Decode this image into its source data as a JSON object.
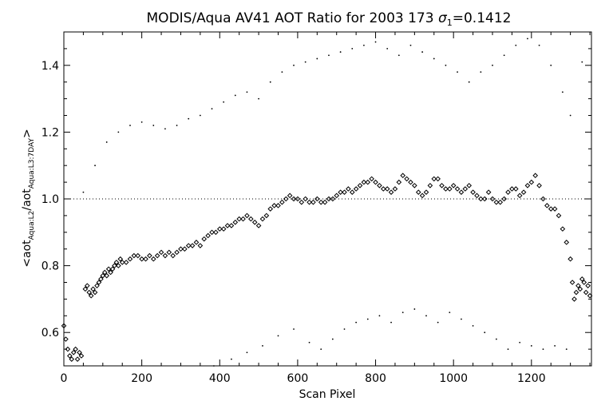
{
  "chart_data": {
    "type": "scatter",
    "title": {
      "main": "MODIS/Aqua AV41 AOT Ratio for 2003 173 ",
      "sigma": "σ",
      "sub": "1",
      "value": "=0.1412"
    },
    "xlabel": "Scan Pixel",
    "ylabel": {
      "prefix": "<aot",
      "sub1": "Aqua:L2",
      "mid": "/aot",
      "sub2": "Aqua:L3:7DAY",
      "suffix": ">"
    },
    "xlim": [
      0,
      1354
    ],
    "ylim": [
      0.5,
      1.5
    ],
    "xticks": [
      0,
      200,
      400,
      600,
      800,
      1000,
      1200
    ],
    "xtick_labels": [
      "0",
      "200",
      "400",
      "600",
      "800",
      "1000",
      "1200"
    ],
    "yticks": [
      0.6,
      0.8,
      1.0,
      1.2,
      1.4
    ],
    "ytick_labels": [
      "0.6",
      "0.8",
      "1.0",
      "1.2",
      "1.4"
    ],
    "reference_line": {
      "y": 1.0,
      "style": "dotted"
    },
    "series": [
      {
        "role": "mean",
        "marker": "diamond",
        "points": [
          [
            0,
            0.62
          ],
          [
            5,
            0.58
          ],
          [
            10,
            0.55
          ],
          [
            15,
            0.53
          ],
          [
            20,
            0.52
          ],
          [
            25,
            0.54
          ],
          [
            30,
            0.55
          ],
          [
            35,
            0.52
          ],
          [
            40,
            0.54
          ],
          [
            45,
            0.53
          ],
          [
            55,
            0.73
          ],
          [
            60,
            0.74
          ],
          [
            65,
            0.72
          ],
          [
            70,
            0.71
          ],
          [
            75,
            0.73
          ],
          [
            80,
            0.72
          ],
          [
            85,
            0.74
          ],
          [
            90,
            0.75
          ],
          [
            95,
            0.76
          ],
          [
            100,
            0.77
          ],
          [
            105,
            0.78
          ],
          [
            110,
            0.77
          ],
          [
            115,
            0.79
          ],
          [
            120,
            0.78
          ],
          [
            125,
            0.79
          ],
          [
            130,
            0.8
          ],
          [
            135,
            0.81
          ],
          [
            140,
            0.8
          ],
          [
            145,
            0.82
          ],
          [
            150,
            0.81
          ],
          [
            160,
            0.81
          ],
          [
            170,
            0.82
          ],
          [
            180,
            0.83
          ],
          [
            190,
            0.83
          ],
          [
            200,
            0.82
          ],
          [
            210,
            0.82
          ],
          [
            220,
            0.83
          ],
          [
            230,
            0.82
          ],
          [
            240,
            0.83
          ],
          [
            250,
            0.84
          ],
          [
            260,
            0.83
          ],
          [
            270,
            0.84
          ],
          [
            280,
            0.83
          ],
          [
            290,
            0.84
          ],
          [
            300,
            0.85
          ],
          [
            310,
            0.85
          ],
          [
            320,
            0.86
          ],
          [
            330,
            0.86
          ],
          [
            340,
            0.87
          ],
          [
            350,
            0.86
          ],
          [
            360,
            0.88
          ],
          [
            370,
            0.89
          ],
          [
            380,
            0.9
          ],
          [
            390,
            0.9
          ],
          [
            400,
            0.91
          ],
          [
            410,
            0.91
          ],
          [
            420,
            0.92
          ],
          [
            430,
            0.92
          ],
          [
            440,
            0.93
          ],
          [
            450,
            0.94
          ],
          [
            460,
            0.94
          ],
          [
            470,
            0.95
          ],
          [
            480,
            0.94
          ],
          [
            490,
            0.93
          ],
          [
            500,
            0.92
          ],
          [
            510,
            0.94
          ],
          [
            520,
            0.95
          ],
          [
            530,
            0.97
          ],
          [
            540,
            0.98
          ],
          [
            550,
            0.98
          ],
          [
            560,
            0.99
          ],
          [
            570,
            1.0
          ],
          [
            580,
            1.01
          ],
          [
            590,
            1.0
          ],
          [
            600,
            1.0
          ],
          [
            610,
            0.99
          ],
          [
            620,
            1.0
          ],
          [
            630,
            0.99
          ],
          [
            640,
            0.99
          ],
          [
            650,
            1.0
          ],
          [
            660,
            0.99
          ],
          [
            670,
            0.99
          ],
          [
            680,
            1.0
          ],
          [
            690,
            1.0
          ],
          [
            700,
            1.01
          ],
          [
            710,
            1.02
          ],
          [
            720,
            1.02
          ],
          [
            730,
            1.03
          ],
          [
            740,
            1.02
          ],
          [
            750,
            1.03
          ],
          [
            760,
            1.04
          ],
          [
            770,
            1.05
          ],
          [
            780,
            1.05
          ],
          [
            790,
            1.06
          ],
          [
            800,
            1.05
          ],
          [
            810,
            1.04
          ],
          [
            820,
            1.03
          ],
          [
            830,
            1.03
          ],
          [
            840,
            1.02
          ],
          [
            850,
            1.03
          ],
          [
            860,
            1.05
          ],
          [
            870,
            1.07
          ],
          [
            880,
            1.06
          ],
          [
            890,
            1.05
          ],
          [
            900,
            1.04
          ],
          [
            910,
            1.02
          ],
          [
            920,
            1.01
          ],
          [
            930,
            1.02
          ],
          [
            940,
            1.04
          ],
          [
            950,
            1.06
          ],
          [
            960,
            1.06
          ],
          [
            970,
            1.04
          ],
          [
            980,
            1.03
          ],
          [
            990,
            1.03
          ],
          [
            1000,
            1.04
          ],
          [
            1010,
            1.03
          ],
          [
            1020,
            1.02
          ],
          [
            1030,
            1.03
          ],
          [
            1040,
            1.04
          ],
          [
            1050,
            1.02
          ],
          [
            1060,
            1.01
          ],
          [
            1070,
            1.0
          ],
          [
            1080,
            1.0
          ],
          [
            1090,
            1.02
          ],
          [
            1100,
            1.0
          ],
          [
            1110,
            0.99
          ],
          [
            1120,
            0.99
          ],
          [
            1130,
            1.0
          ],
          [
            1140,
            1.02
          ],
          [
            1150,
            1.03
          ],
          [
            1160,
            1.03
          ],
          [
            1170,
            1.01
          ],
          [
            1180,
            1.02
          ],
          [
            1190,
            1.04
          ],
          [
            1200,
            1.05
          ],
          [
            1210,
            1.07
          ],
          [
            1220,
            1.04
          ],
          [
            1230,
            1.0
          ],
          [
            1240,
            0.98
          ],
          [
            1250,
            0.97
          ],
          [
            1260,
            0.97
          ],
          [
            1270,
            0.95
          ],
          [
            1280,
            0.91
          ],
          [
            1290,
            0.87
          ],
          [
            1300,
            0.82
          ],
          [
            1305,
            0.75
          ],
          [
            1310,
            0.7
          ],
          [
            1315,
            0.72
          ],
          [
            1320,
            0.74
          ],
          [
            1325,
            0.73
          ],
          [
            1330,
            0.76
          ],
          [
            1335,
            0.75
          ],
          [
            1340,
            0.72
          ],
          [
            1345,
            0.74
          ],
          [
            1350,
            0.71
          ]
        ]
      },
      {
        "role": "upper-sigma",
        "marker": "dot",
        "points": [
          [
            50,
            1.02
          ],
          [
            80,
            1.1
          ],
          [
            110,
            1.17
          ],
          [
            140,
            1.2
          ],
          [
            170,
            1.22
          ],
          [
            200,
            1.23
          ],
          [
            230,
            1.22
          ],
          [
            260,
            1.21
          ],
          [
            290,
            1.22
          ],
          [
            320,
            1.24
          ],
          [
            350,
            1.25
          ],
          [
            380,
            1.27
          ],
          [
            410,
            1.29
          ],
          [
            440,
            1.31
          ],
          [
            470,
            1.32
          ],
          [
            500,
            1.3
          ],
          [
            530,
            1.35
          ],
          [
            560,
            1.38
          ],
          [
            590,
            1.4
          ],
          [
            620,
            1.41
          ],
          [
            650,
            1.42
          ],
          [
            680,
            1.43
          ],
          [
            710,
            1.44
          ],
          [
            740,
            1.45
          ],
          [
            770,
            1.46
          ],
          [
            800,
            1.47
          ],
          [
            830,
            1.45
          ],
          [
            860,
            1.43
          ],
          [
            890,
            1.46
          ],
          [
            920,
            1.44
          ],
          [
            950,
            1.42
          ],
          [
            980,
            1.4
          ],
          [
            1010,
            1.38
          ],
          [
            1040,
            1.35
          ],
          [
            1070,
            1.38
          ],
          [
            1100,
            1.4
          ],
          [
            1130,
            1.43
          ],
          [
            1160,
            1.46
          ],
          [
            1190,
            1.48
          ],
          [
            1220,
            1.46
          ],
          [
            1250,
            1.4
          ],
          [
            1280,
            1.32
          ],
          [
            1300,
            1.25
          ],
          [
            1330,
            1.41
          ]
        ]
      },
      {
        "role": "lower-sigma",
        "marker": "dot",
        "points": [
          [
            385,
            0.5
          ],
          [
            430,
            0.52
          ],
          [
            470,
            0.54
          ],
          [
            510,
            0.56
          ],
          [
            550,
            0.59
          ],
          [
            590,
            0.61
          ],
          [
            630,
            0.57
          ],
          [
            660,
            0.55
          ],
          [
            690,
            0.58
          ],
          [
            720,
            0.61
          ],
          [
            750,
            0.63
          ],
          [
            780,
            0.64
          ],
          [
            810,
            0.65
          ],
          [
            840,
            0.63
          ],
          [
            870,
            0.66
          ],
          [
            900,
            0.67
          ],
          [
            930,
            0.65
          ],
          [
            960,
            0.63
          ],
          [
            990,
            0.66
          ],
          [
            1020,
            0.64
          ],
          [
            1050,
            0.62
          ],
          [
            1080,
            0.6
          ],
          [
            1110,
            0.58
          ],
          [
            1140,
            0.55
          ],
          [
            1170,
            0.57
          ],
          [
            1200,
            0.56
          ],
          [
            1230,
            0.55
          ],
          [
            1260,
            0.56
          ],
          [
            1290,
            0.55
          ]
        ]
      }
    ]
  }
}
